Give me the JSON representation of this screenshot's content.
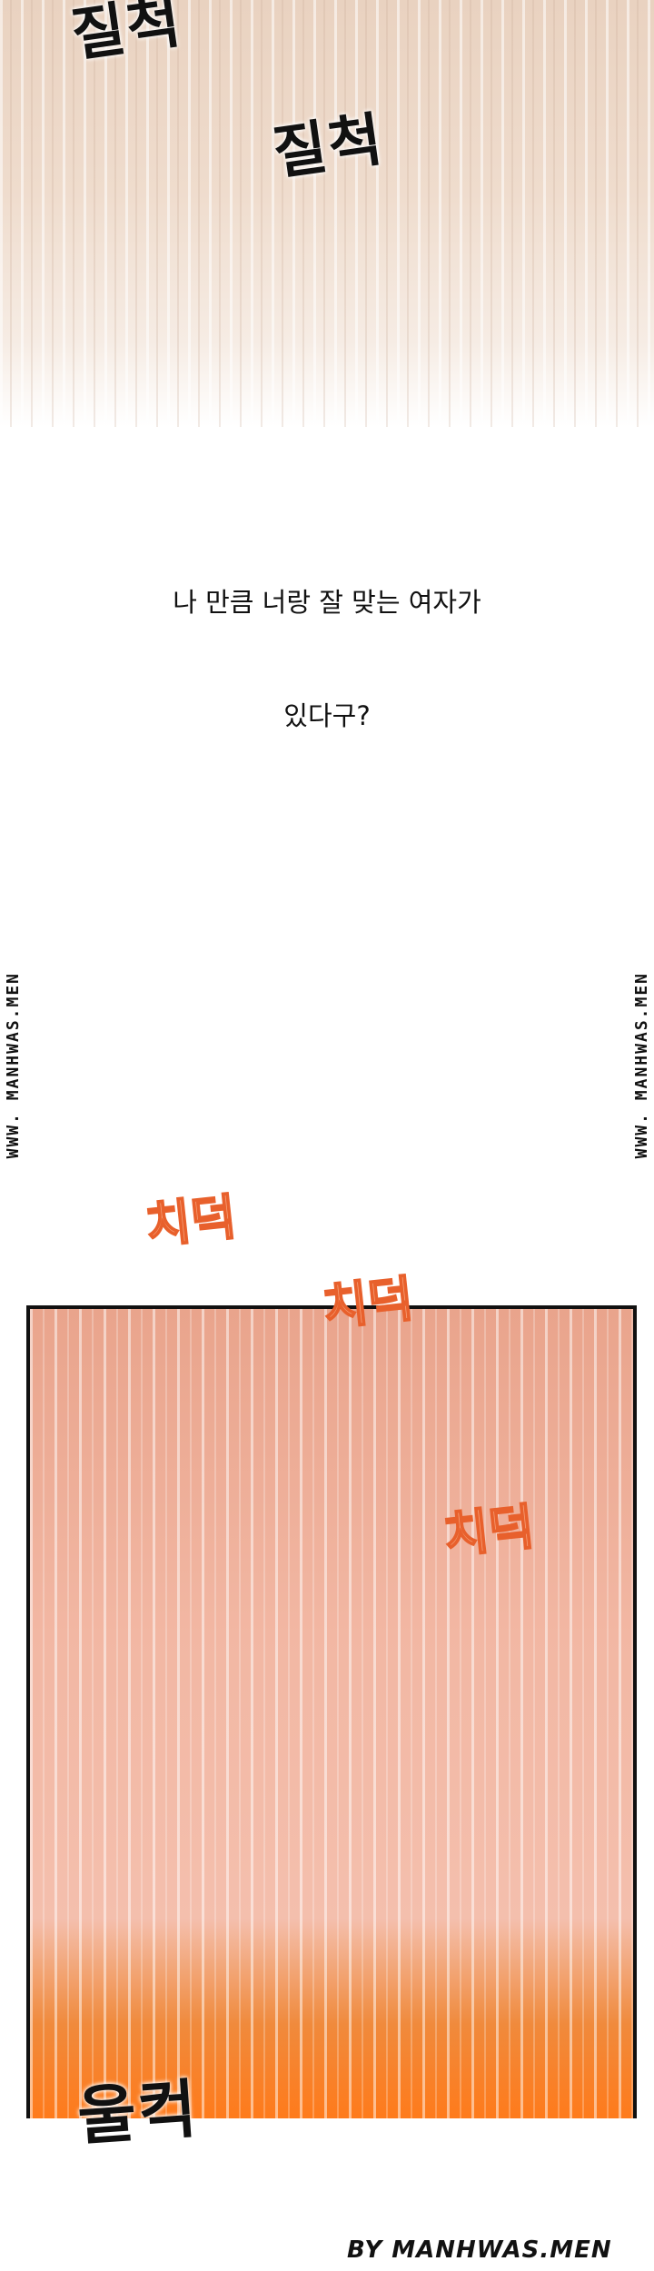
{
  "top_panel": {
    "sfx": [
      "질척",
      "질척"
    ]
  },
  "dialogue": {
    "line1": "나 만큼 너랑 잘 맞는 여자가",
    "line2": "있다구?"
  },
  "watermarks": {
    "side_left": "WWW. MANHWAS.MEN",
    "side_right": "WWW. MANHWAS.MEN",
    "byline": "BY MANHWAS.MEN"
  },
  "panel": {
    "sfx": [
      "치덕",
      "치덕",
      "치덕"
    ],
    "bottom_sfx": "울컥"
  },
  "colors": {
    "panel_border": "#111111",
    "sfx_orange": "#e8602c",
    "accent_orange": "#ff7a1a"
  }
}
